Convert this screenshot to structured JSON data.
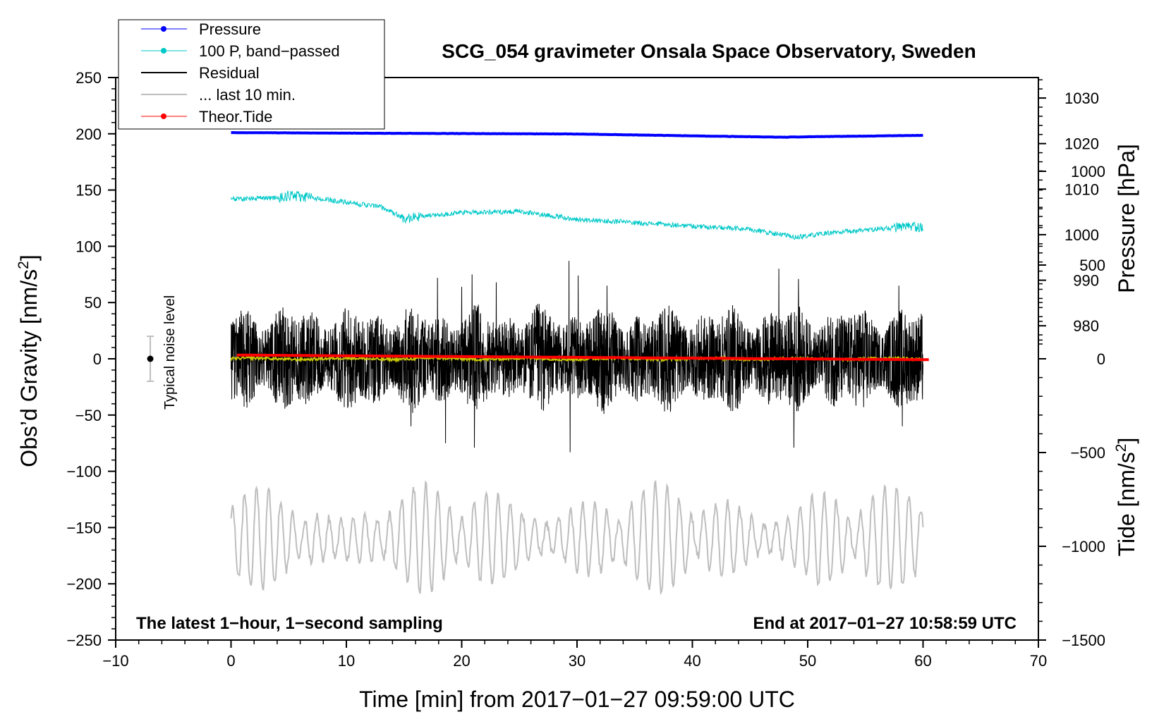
{
  "chart_data": {
    "type": "line",
    "title": "SCG_054 gravimeter Onsala Space Observatory, Sweden",
    "xlabel": "Time [min] from 2017−01−27 09:59:00 UTC",
    "ylabel_left": "Obs’d Gravity [nm/s",
    "ylabel_left_sup": "2",
    "ylabel_left_end": "]",
    "ylabel_right_pressure": "Pressure [hPa]",
    "ylabel_right_tide": "Tide [nm/s",
    "ylabel_right_tide_sup": "2",
    "ylabel_right_tide_end": "]",
    "xlim": [
      -10,
      70
    ],
    "ylim_left": [
      -250,
      250
    ],
    "pressure_range": [
      1034.5,
      911.0
    ],
    "tide_range": [
      -1500,
      1500
    ],
    "x_ticks": [
      {
        "value": -10,
        "label": "−10"
      },
      {
        "value": 0,
        "label": "0"
      },
      {
        "value": 10,
        "label": "10"
      },
      {
        "value": 20,
        "label": "20"
      },
      {
        "value": 30,
        "label": "30"
      },
      {
        "value": 40,
        "label": "40"
      },
      {
        "value": 50,
        "label": "50"
      },
      {
        "value": 60,
        "label": "60"
      },
      {
        "value": 70,
        "label": "70"
      }
    ],
    "y_ticks_left": [
      {
        "value": 250,
        "label": "250"
      },
      {
        "value": 200,
        "label": "200"
      },
      {
        "value": 150,
        "label": "150"
      },
      {
        "value": 100,
        "label": "100"
      },
      {
        "value": 50,
        "label": "50"
      },
      {
        "value": 0,
        "label": "0"
      },
      {
        "value": -50,
        "label": "−50"
      },
      {
        "value": -100,
        "label": "−100"
      },
      {
        "value": -150,
        "label": "−150"
      },
      {
        "value": -200,
        "label": "−200"
      },
      {
        "value": -250,
        "label": "−250"
      }
    ],
    "pressure_ticks": [
      {
        "value": 1030,
        "label": "1030"
      },
      {
        "value": 1020,
        "label": "1020"
      },
      {
        "value": 1010,
        "label": "1010"
      },
      {
        "value": 1000,
        "label": "1000"
      },
      {
        "value": 990,
        "label": "990"
      },
      {
        "value": 980,
        "label": "980"
      }
    ],
    "tide_ticks": [
      {
        "value": 1000,
        "label": "1000"
      },
      {
        "value": 500,
        "label": "500"
      },
      {
        "value": 0,
        "label": "0"
      },
      {
        "value": -500,
        "label": "−500"
      },
      {
        "value": -1000,
        "label": "−1000"
      },
      {
        "value": -1500,
        "label": "−1500"
      }
    ],
    "annotations": {
      "left": "The latest 1−hour, 1−second sampling",
      "right": "End at 2017−01−27 10:58:59 UTC",
      "noise_label": "Typical noise level"
    },
    "noise_bar": {
      "x": -7,
      "center": 0,
      "half_range": 20
    },
    "legend": [
      {
        "label": "Pressure",
        "color": "#0000ff",
        "marker": true
      },
      {
        "label": "100 P, band−passed",
        "color": "#00c8c8",
        "marker": true
      },
      {
        "label": "Residual",
        "color": "#000000",
        "marker": false
      },
      {
        "label": "... last 10 min.",
        "color": "#bebebe",
        "marker": false
      },
      {
        "label": "Theor.Tide",
        "color": "#ff0000",
        "marker": true
      }
    ],
    "series": [
      {
        "name": "Pressure",
        "axis": "pressure",
        "color": "#0000ff",
        "x": [
          0,
          10,
          20,
          30,
          40,
          48,
          50,
          60
        ],
        "values": [
          1022.4,
          1022.3,
          1022.2,
          1022.1,
          1021.7,
          1021.4,
          1021.5,
          1021.8
        ]
      },
      {
        "name": "100 P, band-passed",
        "axis": "left",
        "color": "#00c8c8",
        "x": [
          0,
          4,
          5,
          8,
          10,
          13,
          15,
          20,
          25,
          30,
          35,
          40,
          45,
          49,
          52,
          58,
          60
        ],
        "values": [
          142,
          143,
          145,
          142,
          139,
          135,
          125,
          130,
          131,
          124,
          121,
          118,
          115,
          108,
          112,
          117,
          117
        ]
      },
      {
        "name": "Residual",
        "axis": "left",
        "color": "#000000",
        "x": [
          0,
          60
        ],
        "values": [
          0,
          0
        ],
        "envelope": [
          25,
          50
        ],
        "peak_max": 87,
        "peak_min": -83
      },
      {
        "name": "Residual smoothed",
        "axis": "left",
        "color": "#c8c800",
        "x": [
          0,
          60
        ],
        "values": [
          0,
          0
        ]
      },
      {
        "name": "... last 10 min.",
        "axis": "left",
        "color": "#bebebe",
        "x": [
          0,
          60
        ],
        "center": -160,
        "amplitude_range": [
          -213,
          -93
        ]
      },
      {
        "name": "Theor.Tide",
        "axis": "tide",
        "color": "#ff0000",
        "x": [
          0.5,
          60.5
        ],
        "values": [
          20,
          -5
        ]
      }
    ]
  }
}
